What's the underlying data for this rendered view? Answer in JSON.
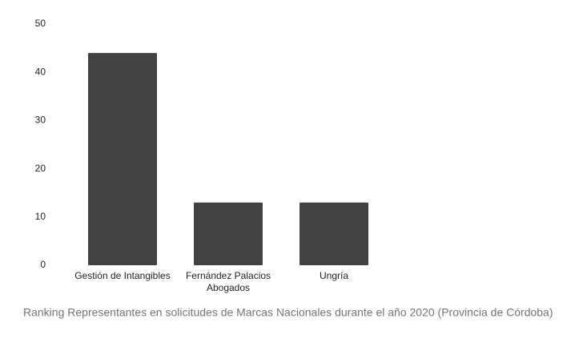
{
  "chart_data": {
    "type": "bar",
    "title": "Ranking Representantes en solicitudes de Marcas Nacionales durante el año 2020  (Provincia de Córdoba)",
    "categories": [
      "Gestión de Intangibles",
      "Fernández Palacios Abogados",
      "Ungría"
    ],
    "values": [
      44,
      13,
      13
    ],
    "color": "#424242",
    "ylim": [
      0,
      50
    ],
    "yticks": [
      0,
      10,
      20,
      30,
      40,
      50
    ],
    "grid": false
  }
}
